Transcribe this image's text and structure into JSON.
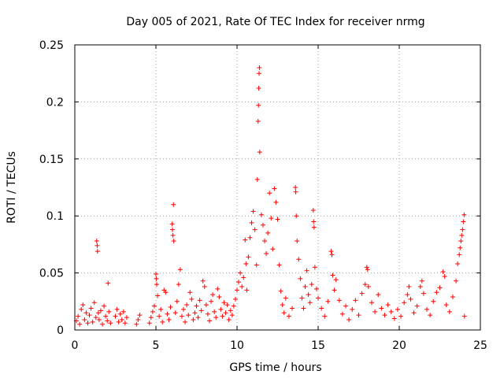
{
  "chart_data": {
    "type": "scatter",
    "title": "Day 005 of 2021, Rate Of TEC Index for receiver nrmg",
    "xlabel": "GPS time / hours",
    "ylabel": "ROTI / TECUs",
    "xlim": [
      0,
      25
    ],
    "ylim": [
      0,
      0.25
    ],
    "x_ticks": [
      0,
      5,
      10,
      15,
      20,
      25
    ],
    "x_tick_labels": [
      "0",
      "5",
      "10",
      "15",
      "20",
      "25"
    ],
    "y_ticks": [
      0,
      0.05,
      0.1,
      0.15,
      0.2,
      0.25
    ],
    "y_tick_labels": [
      "0",
      "0.05",
      "0.1",
      "0.15",
      "0.2",
      "0.25"
    ],
    "grid": true,
    "marker": "plus",
    "color": "#ff0000",
    "series": [
      {
        "name": "ROTI",
        "points": [
          [
            0.1,
            0.008
          ],
          [
            0.2,
            0.012
          ],
          [
            0.3,
            0.005
          ],
          [
            0.4,
            0.018
          ],
          [
            0.5,
            0.022
          ],
          [
            0.6,
            0.009
          ],
          [
            0.7,
            0.015
          ],
          [
            0.8,
            0.006
          ],
          [
            0.9,
            0.013
          ],
          [
            1.0,
            0.019
          ],
          [
            1.1,
            0.007
          ],
          [
            1.2,
            0.024
          ],
          [
            1.3,
            0.011
          ],
          [
            1.35,
            0.078
          ],
          [
            1.38,
            0.074
          ],
          [
            1.4,
            0.069
          ],
          [
            1.45,
            0.015
          ],
          [
            1.5,
            0.009
          ],
          [
            1.6,
            0.017
          ],
          [
            1.7,
            0.005
          ],
          [
            1.8,
            0.021
          ],
          [
            1.9,
            0.012
          ],
          [
            2.0,
            0.008
          ],
          [
            2.05,
            0.041
          ],
          [
            2.1,
            0.016
          ],
          [
            2.2,
            0.006
          ],
          [
            2.5,
            0.012
          ],
          [
            2.6,
            0.018
          ],
          [
            2.7,
            0.007
          ],
          [
            2.8,
            0.014
          ],
          [
            2.9,
            0.009
          ],
          [
            3.0,
            0.016
          ],
          [
            3.1,
            0.006
          ],
          [
            3.2,
            0.011
          ],
          [
            3.8,
            0.005
          ],
          [
            3.9,
            0.009
          ],
          [
            4.0,
            0.013
          ],
          [
            4.6,
            0.006
          ],
          [
            4.7,
            0.011
          ],
          [
            4.8,
            0.016
          ],
          [
            4.9,
            0.021
          ],
          [
            5.0,
            0.049
          ],
          [
            5.02,
            0.045
          ],
          [
            5.05,
            0.04
          ],
          [
            5.1,
            0.03
          ],
          [
            5.2,
            0.012
          ],
          [
            5.3,
            0.018
          ],
          [
            5.4,
            0.007
          ],
          [
            5.5,
            0.035
          ],
          [
            5.6,
            0.033
          ],
          [
            5.7,
            0.014
          ],
          [
            5.8,
            0.009
          ],
          [
            5.9,
            0.02
          ],
          [
            6.0,
            0.093
          ],
          [
            6.02,
            0.088
          ],
          [
            6.05,
            0.083
          ],
          [
            6.08,
            0.11
          ],
          [
            6.1,
            0.078
          ],
          [
            6.2,
            0.015
          ],
          [
            6.3,
            0.025
          ],
          [
            6.4,
            0.04
          ],
          [
            6.5,
            0.053
          ],
          [
            6.6,
            0.012
          ],
          [
            6.7,
            0.018
          ],
          [
            6.8,
            0.007
          ],
          [
            6.9,
            0.022
          ],
          [
            7.0,
            0.013
          ],
          [
            7.1,
            0.033
          ],
          [
            7.2,
            0.027
          ],
          [
            7.3,
            0.009
          ],
          [
            7.4,
            0.015
          ],
          [
            7.5,
            0.021
          ],
          [
            7.6,
            0.011
          ],
          [
            7.7,
            0.026
          ],
          [
            7.8,
            0.017
          ],
          [
            7.9,
            0.043
          ],
          [
            8.0,
            0.038
          ],
          [
            8.1,
            0.022
          ],
          [
            8.2,
            0.014
          ],
          [
            8.3,
            0.008
          ],
          [
            8.4,
            0.025
          ],
          [
            8.5,
            0.031
          ],
          [
            8.6,
            0.016
          ],
          [
            8.7,
            0.011
          ],
          [
            8.8,
            0.036
          ],
          [
            8.9,
            0.029
          ],
          [
            9.0,
            0.018
          ],
          [
            9.1,
            0.012
          ],
          [
            9.2,
            0.024
          ],
          [
            9.3,
            0.015
          ],
          [
            9.4,
            0.022
          ],
          [
            9.5,
            0.009
          ],
          [
            9.6,
            0.017
          ],
          [
            9.7,
            0.013
          ],
          [
            9.8,
            0.021
          ],
          [
            9.9,
            0.027
          ],
          [
            10.0,
            0.035
          ],
          [
            10.1,
            0.042
          ],
          [
            10.2,
            0.05
          ],
          [
            10.3,
            0.038
          ],
          [
            10.4,
            0.046
          ],
          [
            10.5,
            0.079
          ],
          [
            10.55,
            0.058
          ],
          [
            10.6,
            0.035
          ],
          [
            10.7,
            0.064
          ],
          [
            10.8,
            0.081
          ],
          [
            10.9,
            0.094
          ],
          [
            11.0,
            0.104
          ],
          [
            11.1,
            0.088
          ],
          [
            11.2,
            0.057
          ],
          [
            11.25,
            0.132
          ],
          [
            11.3,
            0.183
          ],
          [
            11.32,
            0.197
          ],
          [
            11.34,
            0.212
          ],
          [
            11.36,
            0.225
          ],
          [
            11.38,
            0.23
          ],
          [
            11.4,
            0.156
          ],
          [
            11.5,
            0.101
          ],
          [
            11.6,
            0.092
          ],
          [
            11.7,
            0.078
          ],
          [
            11.8,
            0.067
          ],
          [
            11.9,
            0.085
          ],
          [
            12.0,
            0.12
          ],
          [
            12.1,
            0.098
          ],
          [
            12.2,
            0.071
          ],
          [
            12.3,
            0.124
          ],
          [
            12.4,
            0.112
          ],
          [
            12.5,
            0.097
          ],
          [
            12.6,
            0.057
          ],
          [
            12.7,
            0.034
          ],
          [
            12.8,
            0.022
          ],
          [
            12.9,
            0.015
          ],
          [
            13.0,
            0.028
          ],
          [
            13.2,
            0.012
          ],
          [
            13.4,
            0.019
          ],
          [
            13.6,
            0.125
          ],
          [
            13.62,
            0.121
          ],
          [
            13.65,
            0.1
          ],
          [
            13.7,
            0.078
          ],
          [
            13.8,
            0.062
          ],
          [
            13.9,
            0.045
          ],
          [
            14.0,
            0.028
          ],
          [
            14.1,
            0.019
          ],
          [
            14.2,
            0.038
          ],
          [
            14.3,
            0.052
          ],
          [
            14.4,
            0.031
          ],
          [
            14.5,
            0.024
          ],
          [
            14.6,
            0.04
          ],
          [
            14.7,
            0.105
          ],
          [
            14.72,
            0.095
          ],
          [
            14.75,
            0.09
          ],
          [
            14.8,
            0.055
          ],
          [
            14.9,
            0.036
          ],
          [
            15.0,
            0.028
          ],
          [
            15.2,
            0.019
          ],
          [
            15.4,
            0.012
          ],
          [
            15.6,
            0.025
          ],
          [
            15.8,
            0.069
          ],
          [
            15.85,
            0.066
          ],
          [
            15.9,
            0.048
          ],
          [
            16.0,
            0.035
          ],
          [
            16.1,
            0.044
          ],
          [
            16.3,
            0.026
          ],
          [
            16.5,
            0.014
          ],
          [
            16.7,
            0.021
          ],
          [
            16.9,
            0.009
          ],
          [
            17.1,
            0.018
          ],
          [
            17.3,
            0.026
          ],
          [
            17.5,
            0.013
          ],
          [
            17.7,
            0.032
          ],
          [
            17.9,
            0.04
          ],
          [
            18.0,
            0.055
          ],
          [
            18.05,
            0.053
          ],
          [
            18.1,
            0.038
          ],
          [
            18.3,
            0.024
          ],
          [
            18.5,
            0.016
          ],
          [
            18.7,
            0.031
          ],
          [
            18.9,
            0.019
          ],
          [
            19.1,
            0.013
          ],
          [
            19.3,
            0.022
          ],
          [
            19.5,
            0.016
          ],
          [
            19.7,
            0.01
          ],
          [
            19.9,
            0.018
          ],
          [
            20.1,
            0.012
          ],
          [
            20.3,
            0.024
          ],
          [
            20.5,
            0.031
          ],
          [
            20.6,
            0.038
          ],
          [
            20.7,
            0.027
          ],
          [
            20.9,
            0.015
          ],
          [
            21.1,
            0.021
          ],
          [
            21.3,
            0.038
          ],
          [
            21.4,
            0.043
          ],
          [
            21.5,
            0.032
          ],
          [
            21.7,
            0.018
          ],
          [
            21.9,
            0.013
          ],
          [
            22.1,
            0.025
          ],
          [
            22.3,
            0.033
          ],
          [
            22.5,
            0.037
          ],
          [
            22.7,
            0.051
          ],
          [
            22.8,
            0.047
          ],
          [
            22.9,
            0.022
          ],
          [
            23.1,
            0.016
          ],
          [
            23.3,
            0.029
          ],
          [
            23.5,
            0.043
          ],
          [
            23.6,
            0.058
          ],
          [
            23.7,
            0.066
          ],
          [
            23.75,
            0.072
          ],
          [
            23.8,
            0.078
          ],
          [
            23.85,
            0.083
          ],
          [
            23.9,
            0.088
          ],
          [
            23.95,
            0.095
          ],
          [
            24.0,
            0.101
          ],
          [
            24.02,
            0.012
          ]
        ]
      }
    ]
  }
}
